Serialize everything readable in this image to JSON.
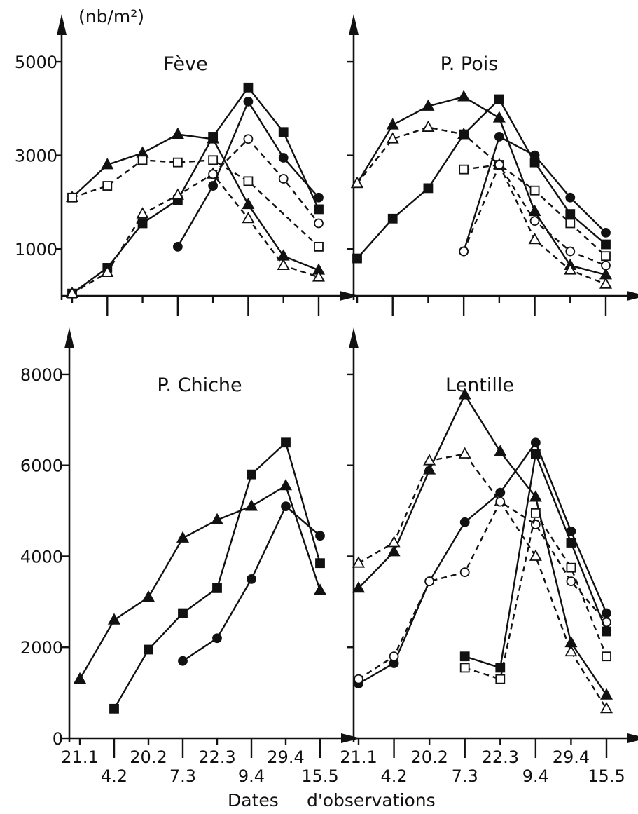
{
  "figure": {
    "unit_label": "(nb/m²)",
    "xlabel_left": "Dates",
    "xlabel_right": "d'observations"
  },
  "chart_data": [
    {
      "type": "line",
      "title": "Fève",
      "ylabel": "(nb/m²)",
      "xlabel": "Dates d'observations",
      "yticks": [
        1000,
        3000,
        5000
      ],
      "ylim": [
        0,
        5600
      ],
      "x_dates": [
        "21.1",
        "4.2",
        "20.2",
        "7.3",
        "22.3",
        "9.4",
        "29.4",
        "15.5"
      ],
      "series": [
        {
          "marker": "filled-triangle",
          "line": "solid",
          "x": [
            0,
            1,
            2,
            3,
            4,
            5,
            6,
            7
          ],
          "values": [
            2100,
            2800,
            3050,
            3450,
            3350,
            1950,
            850,
            550
          ]
        },
        {
          "marker": "open-square",
          "line": "dashed",
          "x": [
            0,
            1,
            2,
            3,
            4,
            5,
            6,
            7
          ],
          "values": [
            2100,
            2350,
            2900,
            2850,
            2900,
            2450,
            null,
            1050
          ]
        },
        {
          "marker": "filled-square",
          "line": "solid",
          "x": [
            0,
            1,
            2,
            3,
            4,
            5,
            6,
            7
          ],
          "values": [
            50,
            600,
            1550,
            2050,
            3400,
            4450,
            3500,
            1850
          ]
        },
        {
          "marker": "open-triangle",
          "line": "dashed",
          "x": [
            0,
            1,
            2,
            3,
            4,
            5,
            6,
            7
          ],
          "values": [
            50,
            500,
            1750,
            2150,
            2600,
            1650,
            650,
            400
          ]
        },
        {
          "marker": "filled-circle",
          "line": "solid",
          "x": [
            3,
            4,
            5,
            6,
            7
          ],
          "values": [
            1050,
            2350,
            4150,
            2950,
            2100
          ]
        },
        {
          "marker": "open-circle",
          "line": "dashed",
          "x": [
            4,
            5,
            6,
            7
          ],
          "values": [
            2600,
            3350,
            2500,
            1550
          ]
        }
      ]
    },
    {
      "type": "line",
      "title": "P. Pois",
      "yticks": [
        1000,
        3000,
        5000
      ],
      "ylim": [
        0,
        5600
      ],
      "x_dates": [
        "21.1",
        "4.2",
        "20.2",
        "7.3",
        "22.3",
        "9.4",
        "29.4",
        "15.5"
      ],
      "series": [
        {
          "marker": "filled-triangle",
          "line": "solid",
          "x": [
            0,
            1,
            2,
            3,
            4,
            5,
            6,
            7
          ],
          "values": [
            2400,
            3650,
            4050,
            4250,
            3800,
            1800,
            650,
            450
          ]
        },
        {
          "marker": "open-triangle",
          "line": "dashed",
          "x": [
            0,
            1,
            2,
            3,
            4,
            5,
            6,
            7
          ],
          "values": [
            2400,
            3350,
            3600,
            3450,
            2800,
            1200,
            550,
            250
          ]
        },
        {
          "marker": "filled-square",
          "line": "solid",
          "x": [
            0,
            1,
            2,
            3,
            4,
            5,
            6,
            7
          ],
          "values": [
            800,
            1650,
            2300,
            3450,
            4200,
            2850,
            1750,
            1100
          ]
        },
        {
          "marker": "open-square",
          "line": "dashed",
          "x": [
            3,
            4,
            5,
            6,
            7
          ],
          "values": [
            2700,
            2800,
            2250,
            1550,
            850
          ]
        },
        {
          "marker": "filled-circle",
          "line": "solid",
          "x": [
            3,
            4,
            5,
            6,
            7
          ],
          "values": [
            950,
            3400,
            3000,
            2100,
            1350
          ]
        },
        {
          "marker": "open-circle",
          "line": "dashed",
          "x": [
            3,
            4,
            5,
            6,
            7
          ],
          "values": [
            950,
            2800,
            1600,
            950,
            650
          ]
        }
      ]
    },
    {
      "type": "line",
      "title": "P. Chiche",
      "yticks": [
        0,
        2000,
        4000,
        6000,
        8000
      ],
      "ylim": [
        0,
        8600
      ],
      "x_dates": [
        "21.1",
        "4.2",
        "20.2",
        "7.3",
        "22.3",
        "9.4",
        "29.4",
        "15.5"
      ],
      "series": [
        {
          "marker": "filled-triangle",
          "line": "solid",
          "x": [
            0,
            1,
            2,
            3,
            4,
            5,
            6,
            7
          ],
          "values": [
            1300,
            2600,
            3100,
            4400,
            4800,
            5100,
            5550,
            3250
          ]
        },
        {
          "marker": "filled-square",
          "line": "solid",
          "x": [
            1,
            2,
            3,
            4,
            5,
            6,
            7
          ],
          "values": [
            650,
            1950,
            2750,
            3300,
            5800,
            6500,
            3850
          ]
        },
        {
          "marker": "filled-circle",
          "line": "solid",
          "x": [
            3,
            4,
            5,
            6,
            7
          ],
          "values": [
            1700,
            2200,
            3500,
            5100,
            4450
          ]
        }
      ]
    },
    {
      "type": "line",
      "title": "Lentille",
      "yticks": [
        0,
        2000,
        4000,
        6000,
        8000
      ],
      "ylim": [
        0,
        8600
      ],
      "x_dates": [
        "21.1",
        "4.2",
        "20.2",
        "7.3",
        "22.3",
        "9.4",
        "29.4",
        "15.5"
      ],
      "series": [
        {
          "marker": "filled-triangle",
          "line": "solid",
          "x": [
            0,
            1,
            2,
            3,
            4,
            5,
            6,
            7
          ],
          "values": [
            3300,
            4100,
            5900,
            7550,
            6300,
            5300,
            2100,
            950
          ]
        },
        {
          "marker": "open-triangle",
          "line": "dashed",
          "x": [
            0,
            1,
            2,
            3,
            4,
            5,
            6,
            7
          ],
          "values": [
            3850,
            4300,
            6100,
            6250,
            5200,
            4000,
            1900,
            650
          ]
        },
        {
          "marker": "filled-circle",
          "line": "solid",
          "x": [
            0,
            1,
            2,
            3,
            4,
            5,
            6,
            7
          ],
          "values": [
            1200,
            1650,
            3450,
            4750,
            5400,
            6500,
            4550,
            2750
          ]
        },
        {
          "marker": "open-circle",
          "line": "dashed",
          "x": [
            0,
            1,
            2,
            3,
            4,
            5,
            6,
            7
          ],
          "values": [
            1300,
            1800,
            3450,
            3650,
            5200,
            4700,
            3450,
            2550
          ]
        },
        {
          "marker": "filled-square",
          "line": "solid",
          "x": [
            3,
            4,
            5,
            6,
            7
          ],
          "values": [
            1800,
            1550,
            6250,
            4300,
            2350
          ]
        },
        {
          "marker": "open-square",
          "line": "dashed",
          "x": [
            3,
            4,
            5,
            6,
            7
          ],
          "values": [
            1550,
            1300,
            4950,
            3750,
            1800
          ]
        }
      ]
    }
  ]
}
